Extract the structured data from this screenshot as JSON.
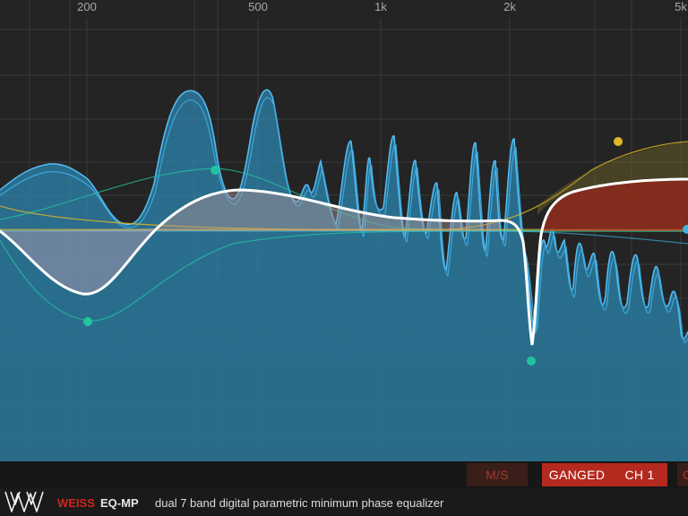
{
  "freq_axis": {
    "labels": [
      "200",
      "500",
      "1k",
      "2k",
      "5k"
    ]
  },
  "control_bar": {
    "ms_label": "M/S",
    "ganged_label": "GANGED",
    "ch1_label": "CH 1",
    "partial_label": "C"
  },
  "footer": {
    "brand": "WEISS",
    "product": "EQ-MP",
    "description": "dual 7 band digital parametric minimum phase equalizer"
  },
  "colors": {
    "background": "#242424",
    "spectrum_blue": "#2f95c8",
    "curve_white": "#ffffff",
    "band_teal": "#22c4a0",
    "band_yellow": "#e2b826",
    "boost_red": "#8f2d1c",
    "brand_red": "#d0241a"
  },
  "icons": {
    "logo": "weiss-w-logo"
  }
}
